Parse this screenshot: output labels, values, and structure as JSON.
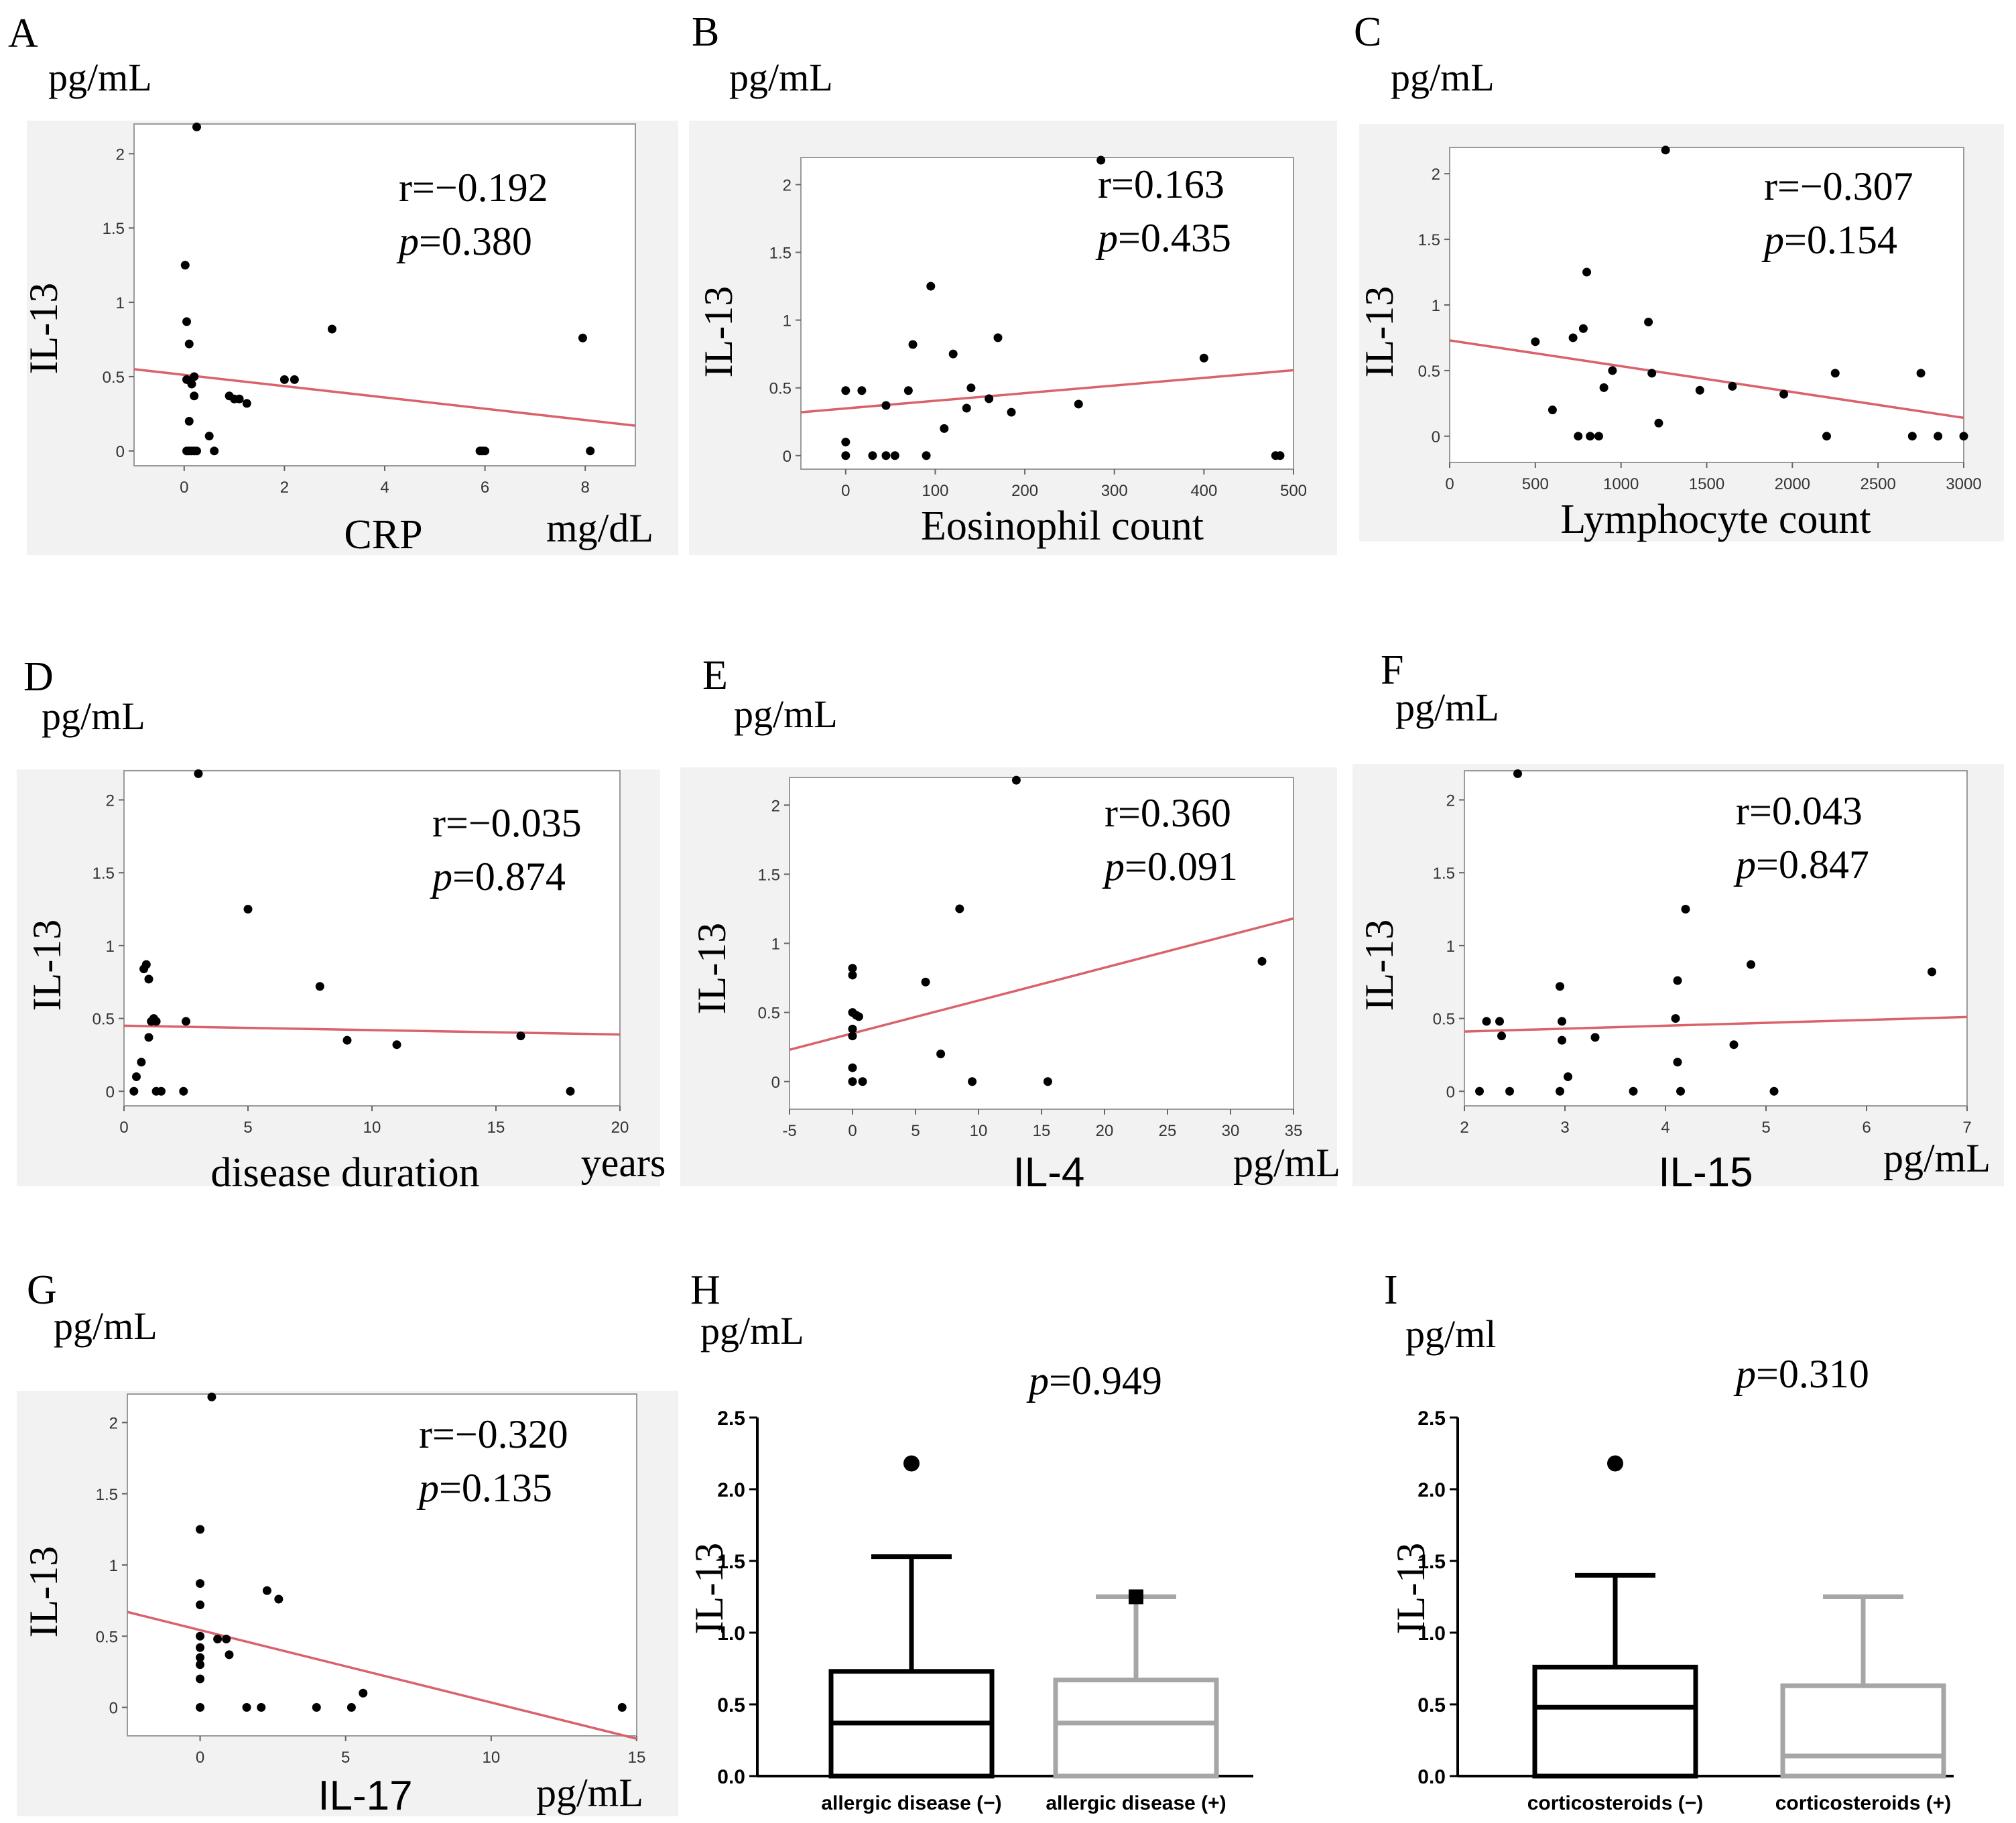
{
  "figure": {
    "background": "#ffffff",
    "panel_bg": "#f2f2f2",
    "fit_color": "#d9626b",
    "point_color": "#000000",
    "box_gray": "#a6a6a6"
  },
  "chart_data": [
    {
      "panel": "A",
      "type": "scatter",
      "y_unit": "pg/mL",
      "ylabel": "IL-13",
      "xlabel": "CRP",
      "x_unit": "mg/dL",
      "xlim": [
        -1,
        9
      ],
      "ylim": [
        -0.1,
        2.2
      ],
      "xticks": [
        0,
        2,
        4,
        6,
        8
      ],
      "yticks": [
        0,
        0.5,
        1,
        1.5,
        2
      ],
      "r_text": "r=−0.192",
      "p_prefix": "p",
      "p_value": "=0.380",
      "fit": [
        [
          -1,
          0.55
        ],
        [
          9,
          0.17
        ]
      ],
      "x": [
        0.25,
        0.02,
        0.05,
        0.1,
        0.2,
        0.05,
        0.15,
        0.2,
        0.1,
        0.25,
        0.05,
        0.15,
        0.1,
        0.2,
        0.5,
        0.6,
        0.9,
        1.0,
        1.1,
        1.25,
        2.0,
        2.2,
        2.95,
        5.9,
        5.95,
        6.0,
        7.95,
        8.1
      ],
      "y": [
        2.18,
        1.25,
        0.87,
        0.72,
        0.5,
        0.48,
        0.45,
        0.37,
        0.2,
        0.0,
        0.0,
        0.0,
        0.0,
        0.0,
        0.1,
        0.0,
        0.37,
        0.35,
        0.35,
        0.32,
        0.48,
        0.48,
        0.82,
        0.0,
        0.0,
        0.0,
        0.76,
        0.0
      ]
    },
    {
      "panel": "B",
      "type": "scatter",
      "y_unit": "pg/mL",
      "ylabel": "IL-13",
      "xlabel": "Eosinophil count",
      "x_unit": "",
      "xlim": [
        -50,
        500
      ],
      "ylim": [
        -0.1,
        2.2
      ],
      "xticks": [
        0,
        100,
        200,
        300,
        400,
        500
      ],
      "yticks": [
        0,
        0.5,
        1,
        1.5,
        2
      ],
      "r_text": "r=0.163",
      "p_prefix": "p",
      "p_value": "=0.435",
      "fit": [
        [
          -50,
          0.32
        ],
        [
          500,
          0.63
        ]
      ],
      "x": [
        285,
        95,
        170,
        75,
        120,
        400,
        0,
        18,
        70,
        45,
        140,
        160,
        135,
        110,
        185,
        260,
        0,
        0,
        30,
        45,
        55,
        90,
        480,
        485
      ],
      "y": [
        2.18,
        1.25,
        0.87,
        0.82,
        0.75,
        0.72,
        0.48,
        0.48,
        0.48,
        0.37,
        0.5,
        0.42,
        0.35,
        0.2,
        0.32,
        0.38,
        0.1,
        0.0,
        0.0,
        0.0,
        0.0,
        0.0,
        0.0,
        0.0
      ]
    },
    {
      "panel": "C",
      "type": "scatter",
      "y_unit": "pg/mL",
      "ylabel": "IL-13",
      "xlabel": "Lymphocyte count",
      "x_unit": "",
      "xlim": [
        0,
        3000
      ],
      "ylim": [
        -0.2,
        2.2
      ],
      "xticks": [
        0,
        500,
        1000,
        1500,
        2000,
        2500,
        3000
      ],
      "yticks": [
        0,
        0.5,
        1,
        1.5,
        2
      ],
      "r_text": "r=−0.307",
      "p_prefix": "p",
      "p_value": "=0.154",
      "fit": [
        [
          0,
          0.73
        ],
        [
          3000,
          0.14
        ]
      ],
      "x": [
        1260,
        800,
        1160,
        720,
        780,
        500,
        600,
        950,
        900,
        1180,
        1220,
        1460,
        1650,
        1950,
        2250,
        2750,
        750,
        820,
        870,
        2200,
        2700,
        2850,
        3000
      ],
      "y": [
        2.18,
        1.25,
        0.87,
        0.75,
        0.82,
        0.72,
        0.2,
        0.5,
        0.37,
        0.48,
        0.1,
        0.35,
        0.38,
        0.32,
        0.48,
        0.48,
        0.0,
        0.0,
        0.0,
        0.0,
        0.0,
        0.0,
        0.0
      ]
    },
    {
      "panel": "D",
      "type": "scatter",
      "y_unit": "pg/mL",
      "ylabel": "IL-13",
      "xlabel": "disease duration",
      "x_unit": "years",
      "xlim": [
        0,
        20
      ],
      "ylim": [
        -0.1,
        2.2
      ],
      "xticks": [
        0,
        5,
        10,
        15,
        20
      ],
      "yticks": [
        0,
        0.5,
        1,
        1.5,
        2
      ],
      "r_text": "r=−0.035",
      "p_prefix": "p",
      "p_value": "=0.874",
      "fit": [
        [
          0,
          0.45
        ],
        [
          20,
          0.39
        ]
      ],
      "x": [
        3.0,
        5.0,
        0.8,
        0.9,
        1.0,
        7.9,
        1.1,
        1.2,
        1.3,
        2.5,
        1.0,
        9.0,
        11.0,
        16.0,
        0.5,
        0.7,
        0.4,
        1.3,
        1.5,
        2.4,
        18.0
      ],
      "y": [
        2.18,
        1.25,
        0.84,
        0.87,
        0.77,
        0.72,
        0.48,
        0.5,
        0.48,
        0.48,
        0.37,
        0.35,
        0.32,
        0.38,
        0.1,
        0.2,
        0.0,
        0.0,
        0.0,
        0.0,
        0.0
      ]
    },
    {
      "panel": "E",
      "type": "scatter",
      "y_unit": "pg/mL",
      "ylabel": "IL-13",
      "xlabel": "IL-4",
      "x_unit": "pg/mL",
      "xlim": [
        -5,
        35
      ],
      "ylim": [
        -0.2,
        2.2
      ],
      "xticks": [
        -5,
        0,
        5,
        10,
        15,
        20,
        25,
        30,
        35
      ],
      "yticks": [
        0,
        0.5,
        1,
        1.5,
        2
      ],
      "r_text": "r=0.360",
      "p_prefix": "p",
      "p_value": "=0.091",
      "fit": [
        [
          -5,
          0.23
        ],
        [
          35,
          1.18
        ]
      ],
      "x": [
        13,
        8.5,
        32.5,
        0,
        0,
        5.8,
        0,
        0.3,
        0.5,
        0,
        0,
        0,
        7,
        0,
        0.8,
        9.5,
        15.5
      ],
      "y": [
        2.18,
        1.25,
        0.87,
        0.82,
        0.77,
        0.72,
        0.5,
        0.48,
        0.47,
        0.38,
        0.33,
        0.1,
        0.2,
        0.0,
        0.0,
        0.0,
        0.0
      ]
    },
    {
      "panel": "F",
      "type": "scatter",
      "y_unit": "pg/mL",
      "ylabel": "IL-13",
      "xlabel": "IL-15",
      "x_unit": "pg/mL",
      "xlim": [
        2,
        7
      ],
      "ylim": [
        -0.1,
        2.2
      ],
      "xticks": [
        2,
        3,
        4,
        5,
        6,
        7
      ],
      "yticks": [
        0,
        0.5,
        1,
        1.5,
        2
      ],
      "r_text": "r=0.043",
      "p_prefix": "p",
      "p_value": "=0.847",
      "fit": [
        [
          2,
          0.41
        ],
        [
          7,
          0.51
        ]
      ],
      "x": [
        2.53,
        4.2,
        4.85,
        6.65,
        4.12,
        2.95,
        2.22,
        2.35,
        2.97,
        4.1,
        2.37,
        2.97,
        3.3,
        4.68,
        3.03,
        4.12,
        2.15,
        2.45,
        2.95,
        3.68,
        4.15,
        5.08
      ],
      "y": [
        2.18,
        1.25,
        0.87,
        0.82,
        0.76,
        0.72,
        0.48,
        0.48,
        0.48,
        0.5,
        0.38,
        0.35,
        0.37,
        0.32,
        0.1,
        0.2,
        0.0,
        0.0,
        0.0,
        0.0,
        0.0,
        0.0
      ]
    },
    {
      "panel": "G",
      "type": "scatter",
      "y_unit": "pg/mL",
      "ylabel": "IL-13",
      "xlabel": "IL-17",
      "x_unit": "pg/mL",
      "xlim": [
        -2.5,
        15
      ],
      "ylim": [
        -0.2,
        2.2
      ],
      "xticks": [
        0,
        5,
        10,
        15
      ],
      "yticks": [
        0,
        0.5,
        1,
        1.5,
        2
      ],
      "r_text": "r=−0.320",
      "p_prefix": "p",
      "p_value": "=0.135",
      "fit": [
        [
          -2.5,
          0.67
        ],
        [
          15,
          -0.22
        ]
      ],
      "x": [
        0.4,
        0,
        0,
        2.3,
        2.7,
        0,
        0,
        0.6,
        0.9,
        0,
        1.0,
        0,
        0,
        0,
        0,
        5.6,
        1.6,
        2.1,
        4.0,
        5.2,
        14.5
      ],
      "y": [
        2.18,
        1.25,
        0.87,
        0.82,
        0.76,
        0.72,
        0.5,
        0.48,
        0.48,
        0.42,
        0.37,
        0.35,
        0.3,
        0.2,
        0.0,
        0.1,
        0.0,
        0.0,
        0.0,
        0.0,
        0.0
      ]
    },
    {
      "panel": "H",
      "type": "box",
      "y_unit": "pg/mL",
      "ylabel": "IL-13",
      "p_prefix": "p",
      "p_value": "=0.949",
      "ylim": [
        0,
        2.5
      ],
      "yticks": [
        0.0,
        0.5,
        1.0,
        1.5,
        2.0,
        2.5
      ],
      "ytick_labels": [
        "0.0",
        "0.5",
        "1.0",
        "1.5",
        "2.0",
        "2.5"
      ],
      "groups": [
        {
          "label": "allergic disease (−)",
          "q1": 0.0,
          "median": 0.37,
          "q3": 0.73,
          "whisker_low": 0.0,
          "whisker_high": 1.53,
          "outliers": [
            2.18
          ],
          "outlier_marker": "circle",
          "color": "#000000"
        },
        {
          "label": "allergic disease (+)",
          "q1": 0.0,
          "median": 0.37,
          "q3": 0.67,
          "whisker_low": 0.0,
          "whisker_high": 1.25,
          "outliers": [
            1.25
          ],
          "outlier_marker": "square",
          "color": "#a6a6a6"
        }
      ]
    },
    {
      "panel": "I",
      "type": "box",
      "y_unit": "pg/ml",
      "ylabel": "IL-13",
      "p_prefix": "p",
      "p_value": "=0.310",
      "ylim": [
        0,
        2.5
      ],
      "yticks": [
        0.0,
        0.5,
        1.0,
        1.5,
        2.0,
        2.5
      ],
      "ytick_labels": [
        "0.0",
        "0.5",
        "1.0",
        "1.5",
        "2.0",
        "2.5"
      ],
      "groups": [
        {
          "label": "corticosteroids (−)",
          "q1": 0.0,
          "median": 0.48,
          "q3": 0.76,
          "whisker_low": 0.0,
          "whisker_high": 1.4,
          "outliers": [
            2.18
          ],
          "outlier_marker": "circle",
          "color": "#000000"
        },
        {
          "label": "corticosteroids (+)",
          "q1": 0.0,
          "median": 0.14,
          "q3": 0.63,
          "whisker_low": 0.0,
          "whisker_high": 1.25,
          "outliers": [],
          "outlier_marker": "none",
          "color": "#a6a6a6"
        }
      ]
    }
  ]
}
